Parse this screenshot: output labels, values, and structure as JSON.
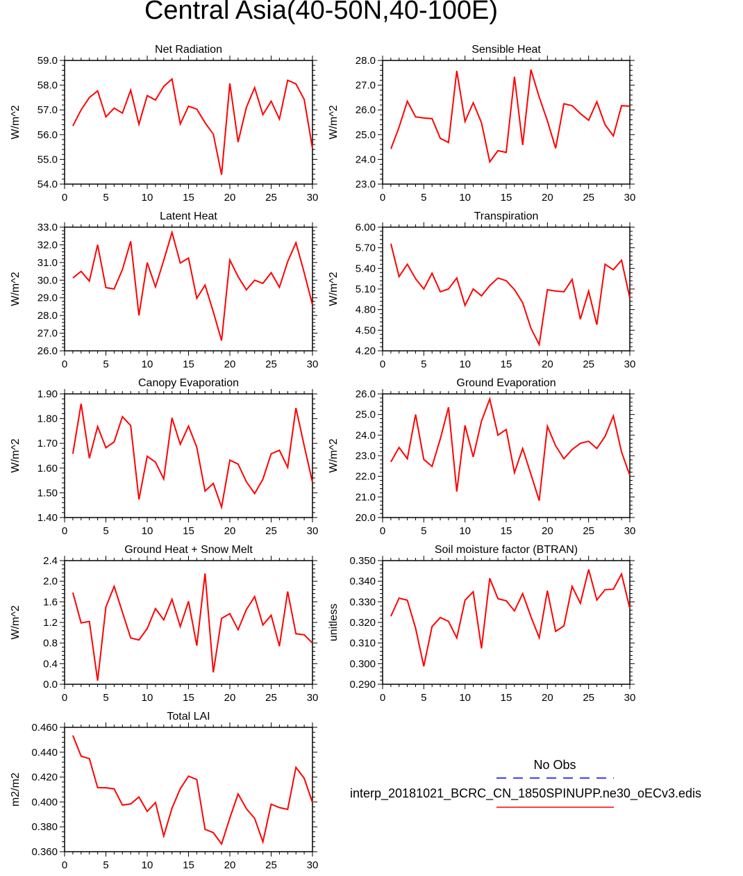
{
  "title": "Central Asia(40-50N,40-100E)",
  "legend": {
    "entries": [
      {
        "label": "No Obs",
        "color": "#0000ff",
        "dash": "dashed"
      },
      {
        "label": "interp_20181021_BCRC_CN_1850SPINUPP.ne30_oECv3.edis",
        "color": "#ff0000",
        "dash": "solid"
      }
    ]
  },
  "chart_data": [
    {
      "type": "line",
      "title": "Net Radiation",
      "ylabel": "W/m^2",
      "xlim": [
        0,
        30
      ],
      "ylim": [
        54.0,
        59.0
      ],
      "xticks": [
        "0",
        "5",
        "10",
        "15",
        "20",
        "25",
        "30"
      ],
      "yticks": [
        "54.0",
        "55.0",
        "56.0",
        "57.0",
        "58.0",
        "59.0"
      ],
      "x": [
        1,
        2,
        3,
        4,
        5,
        6,
        7,
        8,
        9,
        10,
        11,
        12,
        13,
        14,
        15,
        16,
        17,
        18,
        19,
        20,
        21,
        22,
        23,
        24,
        25,
        26,
        27,
        28,
        29,
        30
      ],
      "series": [
        {
          "color": "#ff0000",
          "values": [
            56.35,
            57.0,
            57.5,
            57.77,
            56.72,
            57.07,
            56.87,
            57.8,
            56.42,
            57.58,
            57.4,
            57.95,
            58.25,
            56.43,
            57.15,
            57.03,
            56.48,
            56.02,
            54.38,
            58.07,
            55.7,
            57.1,
            57.9,
            56.81,
            57.35,
            56.63,
            58.2,
            58.05,
            57.42,
            55.45
          ]
        }
      ]
    },
    {
      "type": "line",
      "title": "Sensible Heat",
      "ylabel": "W/m^2",
      "xlim": [
        0,
        30
      ],
      "ylim": [
        23.0,
        28.0
      ],
      "xticks": [
        "0",
        "5",
        "10",
        "15",
        "20",
        "25",
        "30"
      ],
      "yticks": [
        "23.0",
        "24.0",
        "25.0",
        "26.0",
        "27.0",
        "28.0"
      ],
      "x": [
        1,
        2,
        3,
        4,
        5,
        6,
        7,
        8,
        9,
        10,
        11,
        12,
        13,
        14,
        15,
        16,
        17,
        18,
        19,
        20,
        21,
        22,
        23,
        24,
        25,
        26,
        27,
        28,
        29,
        30
      ],
      "series": [
        {
          "color": "#ff0000",
          "values": [
            24.42,
            25.3,
            26.35,
            25.72,
            25.67,
            25.65,
            24.85,
            24.68,
            27.58,
            25.53,
            26.29,
            25.48,
            23.9,
            24.35,
            24.28,
            27.34,
            24.58,
            27.63,
            26.52,
            25.56,
            24.45,
            26.25,
            26.17,
            25.85,
            25.58,
            26.33,
            25.4,
            24.95,
            26.17,
            26.15
          ]
        }
      ]
    },
    {
      "type": "line",
      "title": "Latent Heat",
      "ylabel": "W/m^2",
      "xlim": [
        0,
        30
      ],
      "ylim": [
        26.0,
        33.0
      ],
      "xticks": [
        "0",
        "5",
        "10",
        "15",
        "20",
        "25",
        "30"
      ],
      "yticks": [
        "26.0",
        "27.0",
        "28.0",
        "29.0",
        "30.0",
        "31.0",
        "32.0",
        "33.0"
      ],
      "x": [
        1,
        2,
        3,
        4,
        5,
        6,
        7,
        8,
        9,
        10,
        11,
        12,
        13,
        14,
        15,
        16,
        17,
        18,
        19,
        20,
        21,
        22,
        23,
        24,
        25,
        26,
        27,
        28,
        29,
        30
      ],
      "series": [
        {
          "color": "#ff0000",
          "values": [
            30.12,
            30.5,
            29.95,
            32.0,
            29.58,
            29.5,
            30.6,
            32.2,
            28.0,
            31.0,
            29.62,
            31.12,
            32.7,
            30.97,
            31.25,
            28.97,
            29.72,
            28.2,
            26.58,
            31.14,
            30.2,
            29.45,
            30.0,
            29.82,
            30.42,
            29.6,
            31.05,
            32.12,
            30.42,
            28.6
          ]
        }
      ]
    },
    {
      "type": "line",
      "title": "Transpiration",
      "ylabel": "W/m^2",
      "xlim": [
        0,
        30
      ],
      "ylim": [
        4.2,
        6.0
      ],
      "xticks": [
        "0",
        "5",
        "10",
        "15",
        "20",
        "25",
        "30"
      ],
      "yticks": [
        "4.20",
        "4.50",
        "4.80",
        "5.10",
        "5.40",
        "5.70",
        "6.00"
      ],
      "x": [
        1,
        2,
        3,
        4,
        5,
        6,
        7,
        8,
        9,
        10,
        11,
        12,
        13,
        14,
        15,
        16,
        17,
        18,
        19,
        20,
        21,
        22,
        23,
        24,
        25,
        26,
        27,
        28,
        29,
        30
      ],
      "series": [
        {
          "color": "#ff0000",
          "values": [
            5.76,
            5.28,
            5.46,
            5.25,
            5.1,
            5.33,
            5.06,
            5.1,
            5.26,
            4.86,
            5.1,
            5.0,
            5.15,
            5.26,
            5.22,
            5.09,
            4.9,
            4.53,
            4.29,
            5.09,
            5.07,
            5.06,
            5.24,
            4.66,
            5.07,
            4.58,
            5.46,
            5.38,
            5.52,
            4.97
          ]
        }
      ]
    },
    {
      "type": "line",
      "title": "Canopy Evaporation",
      "ylabel": "W/m^2",
      "xlim": [
        0,
        30
      ],
      "ylim": [
        1.4,
        1.9
      ],
      "xticks": [
        "0",
        "5",
        "10",
        "15",
        "20",
        "25",
        "30"
      ],
      "yticks": [
        "1.40",
        "1.50",
        "1.60",
        "1.70",
        "1.80",
        "1.90"
      ],
      "x": [
        1,
        2,
        3,
        4,
        5,
        6,
        7,
        8,
        9,
        10,
        11,
        12,
        13,
        14,
        15,
        16,
        17,
        18,
        19,
        20,
        21,
        22,
        23,
        24,
        25,
        26,
        27,
        28,
        29,
        30
      ],
      "series": [
        {
          "color": "#ff0000",
          "values": [
            1.658,
            1.86,
            1.64,
            1.768,
            1.682,
            1.706,
            1.808,
            1.772,
            1.473,
            1.648,
            1.624,
            1.556,
            1.803,
            1.696,
            1.77,
            1.684,
            1.507,
            1.538,
            1.442,
            1.632,
            1.616,
            1.545,
            1.497,
            1.555,
            1.658,
            1.672,
            1.603,
            1.843,
            1.69,
            1.543
          ]
        }
      ]
    },
    {
      "type": "line",
      "title": "Ground Evaporation",
      "ylabel": "W/m^2",
      "xlim": [
        0,
        30
      ],
      "ylim": [
        20.0,
        26.0
      ],
      "xticks": [
        "0",
        "5",
        "10",
        "15",
        "20",
        "25",
        "30"
      ],
      "yticks": [
        "20.0",
        "21.0",
        "22.0",
        "23.0",
        "24.0",
        "25.0",
        "26.0"
      ],
      "x": [
        1,
        2,
        3,
        4,
        5,
        6,
        7,
        8,
        9,
        10,
        11,
        12,
        13,
        14,
        15,
        16,
        17,
        18,
        19,
        20,
        21,
        22,
        23,
        24,
        25,
        26,
        27,
        28,
        29,
        30
      ],
      "series": [
        {
          "color": "#ff0000",
          "values": [
            22.7,
            23.4,
            22.85,
            25.0,
            22.82,
            22.48,
            23.82,
            25.35,
            21.26,
            24.47,
            22.94,
            24.68,
            25.75,
            24.0,
            24.27,
            22.18,
            23.35,
            22.1,
            20.82,
            24.43,
            23.48,
            22.85,
            23.3,
            23.6,
            23.7,
            23.35,
            23.94,
            24.93,
            23.18,
            22.05
          ]
        }
      ]
    },
    {
      "type": "line",
      "title": "Ground Heat + Snow Melt",
      "ylabel": "W/m^2",
      "xlim": [
        0,
        30
      ],
      "ylim": [
        0.0,
        2.4
      ],
      "xticks": [
        "0",
        "5",
        "10",
        "15",
        "20",
        "25",
        "30"
      ],
      "yticks": [
        "0.0",
        "0.4",
        "0.8",
        "1.2",
        "1.6",
        "2.0",
        "2.4"
      ],
      "x": [
        1,
        2,
        3,
        4,
        5,
        6,
        7,
        8,
        9,
        10,
        11,
        12,
        13,
        14,
        15,
        16,
        17,
        18,
        19,
        20,
        21,
        22,
        23,
        24,
        25,
        26,
        27,
        28,
        29,
        30
      ],
      "series": [
        {
          "color": "#ff0000",
          "values": [
            1.78,
            1.19,
            1.22,
            0.07,
            1.5,
            1.9,
            1.4,
            0.9,
            0.86,
            1.08,
            1.47,
            1.25,
            1.65,
            1.12,
            1.61,
            0.75,
            2.15,
            0.23,
            1.28,
            1.37,
            1.06,
            1.45,
            1.7,
            1.15,
            1.34,
            0.74,
            1.8,
            0.98,
            0.96,
            0.8
          ]
        }
      ]
    },
    {
      "type": "line",
      "title": "Soil moisture factor (BTRAN)",
      "ylabel": "unitless",
      "xlim": [
        0,
        30
      ],
      "ylim": [
        0.29,
        0.35
      ],
      "xticks": [
        "0",
        "5",
        "10",
        "15",
        "20",
        "25",
        "30"
      ],
      "yticks": [
        "0.290",
        "0.300",
        "0.310",
        "0.320",
        "0.330",
        "0.340",
        "0.350"
      ],
      "x": [
        1,
        2,
        3,
        4,
        5,
        6,
        7,
        8,
        9,
        10,
        11,
        12,
        13,
        14,
        15,
        16,
        17,
        18,
        19,
        20,
        21,
        22,
        23,
        24,
        25,
        26,
        27,
        28,
        29,
        30
      ],
      "series": [
        {
          "color": "#ff0000",
          "values": [
            0.323,
            0.3318,
            0.3308,
            0.3172,
            0.2987,
            0.318,
            0.3224,
            0.3205,
            0.3125,
            0.3308,
            0.3349,
            0.3074,
            0.3414,
            0.3315,
            0.3305,
            0.3256,
            0.334,
            0.3228,
            0.3126,
            0.3354,
            0.3157,
            0.3183,
            0.3375,
            0.3293,
            0.3457,
            0.3309,
            0.3359,
            0.3361,
            0.3435,
            0.3268
          ]
        }
      ]
    },
    {
      "type": "line",
      "title": "Total LAI",
      "ylabel": "m2/m2",
      "xlim": [
        0,
        30
      ],
      "ylim": [
        0.36,
        0.46
      ],
      "xticks": [
        "0",
        "5",
        "10",
        "15",
        "20",
        "25",
        "30"
      ],
      "yticks": [
        "0.360",
        "0.380",
        "0.400",
        "0.420",
        "0.440",
        "0.460"
      ],
      "x": [
        1,
        2,
        3,
        4,
        5,
        6,
        7,
        8,
        9,
        10,
        11,
        12,
        13,
        14,
        15,
        16,
        17,
        18,
        19,
        20,
        21,
        22,
        23,
        24,
        25,
        26,
        27,
        28,
        29,
        30
      ],
      "series": [
        {
          "color": "#ff0000",
          "values": [
            0.4535,
            0.4368,
            0.4348,
            0.4115,
            0.4114,
            0.4105,
            0.3975,
            0.3984,
            0.404,
            0.3924,
            0.3995,
            0.3726,
            0.395,
            0.4106,
            0.4208,
            0.418,
            0.378,
            0.3753,
            0.3662,
            0.3871,
            0.4065,
            0.3946,
            0.3868,
            0.3679,
            0.3982,
            0.3955,
            0.394,
            0.4278,
            0.419,
            0.3995
          ]
        }
      ]
    }
  ]
}
